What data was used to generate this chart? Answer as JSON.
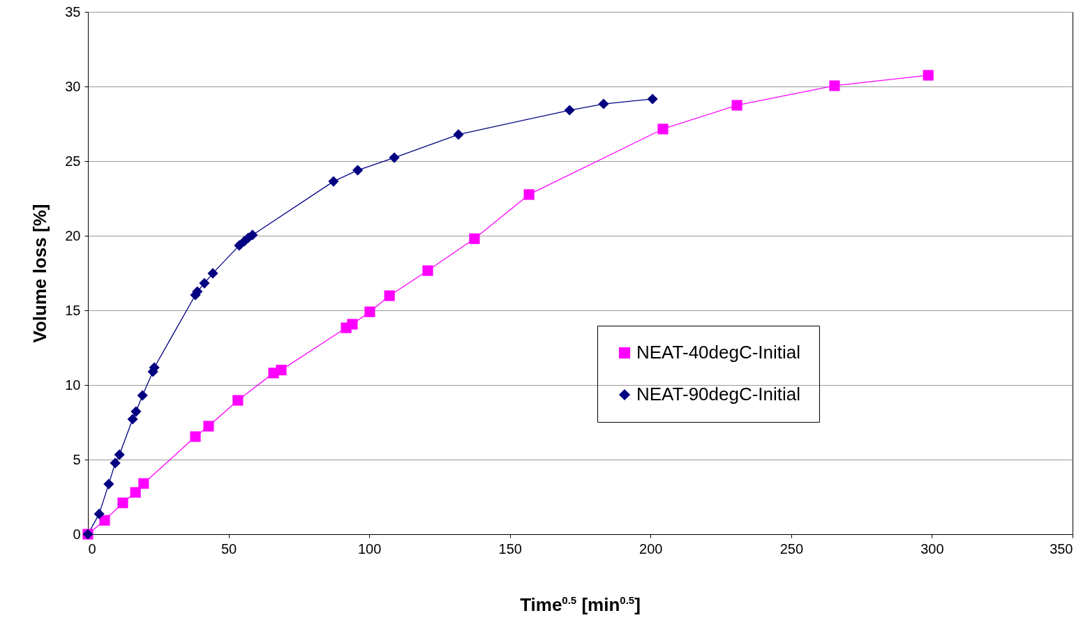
{
  "chart_data": {
    "type": "line",
    "xlabel": "Time$^{0.5}$ [min$^{0.5}$]",
    "ylabel": "Volume loss [%]",
    "xlim": [
      0,
      350
    ],
    "xticks": [
      0,
      50,
      100,
      150,
      200,
      250,
      300,
      350
    ],
    "ylim": [
      0,
      35
    ],
    "yticks": [
      0,
      5,
      10,
      15,
      20,
      25,
      30,
      35
    ],
    "grid": "y",
    "legend": "right",
    "series": [
      {
        "name": "NEAT-40degC-Initial",
        "color": "#ff00ff",
        "marker": "square",
        "x": [
          0,
          5.95,
          12.4,
          16.9,
          19.8,
          38.2,
          42.9,
          53.3,
          66,
          68.7,
          91.8,
          94,
          100.2,
          107.2,
          120.8,
          137.4,
          156.8,
          204.4,
          230.7,
          265.4,
          298.7
        ],
        "values": [
          0,
          0.93,
          2.1,
          2.8,
          3.4,
          6.54,
          7.24,
          8.97,
          10.8,
          11.0,
          13.83,
          14.07,
          14.9,
          15.98,
          17.66,
          19.8,
          22.76,
          27.15,
          28.74,
          30.05,
          30.75
        ]
      },
      {
        "name": "NEAT-90degC-Initial",
        "color": "#000080",
        "marker": "diamond",
        "x": [
          0,
          4,
          7.4,
          9.7,
          11.2,
          15.9,
          17.1,
          19.4,
          23.1,
          23.6,
          38.2,
          38.9,
          41.4,
          44.4,
          53.8,
          55.6,
          57.0,
          58.5,
          87.3,
          95.9,
          108.9,
          131.7,
          171.2,
          183.3,
          200.7
        ],
        "values": [
          0,
          1.36,
          3.36,
          4.77,
          5.33,
          7.71,
          8.22,
          9.3,
          10.89,
          11.17,
          16.03,
          16.26,
          16.82,
          17.48,
          19.35,
          19.63,
          19.86,
          20.05,
          23.64,
          24.39,
          25.23,
          26.78,
          28.41,
          28.83,
          29.16
        ]
      }
    ]
  }
}
